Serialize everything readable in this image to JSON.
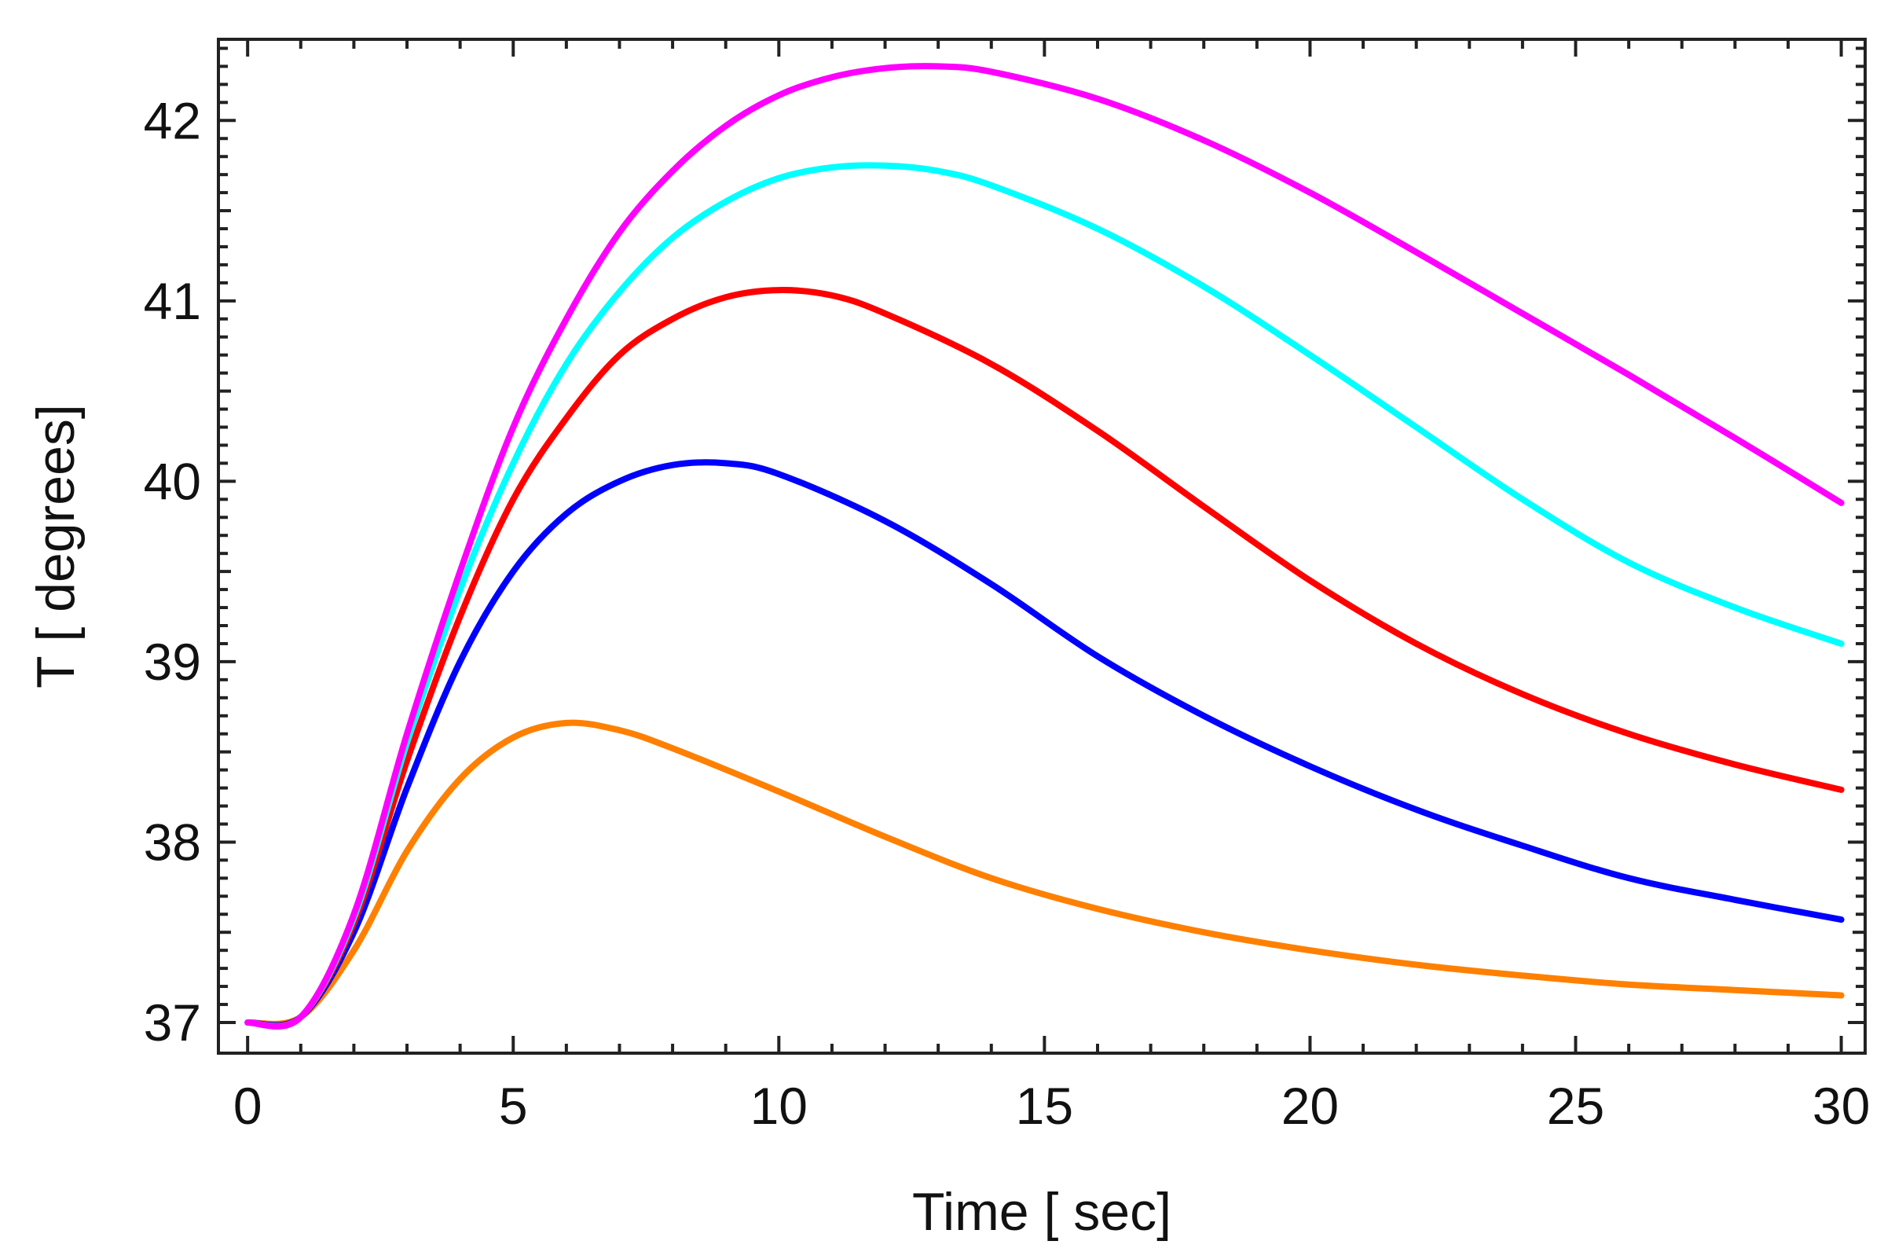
{
  "chart_data": {
    "type": "line",
    "title": "",
    "xlabel": "Time [ sec]",
    "ylabel": "T [ degrees]",
    "xlim": [
      -0.55,
      30.45
    ],
    "ylim": [
      36.83,
      42.45
    ],
    "xticks": [
      0,
      5,
      10,
      15,
      20,
      25,
      30
    ],
    "yticks": [
      37,
      38,
      39,
      40,
      41,
      42
    ],
    "xtick_labels": [
      "0",
      "5",
      "10",
      "15",
      "20",
      "25",
      "30"
    ],
    "ytick_labels": [
      "37",
      "38",
      "39",
      "40",
      "41",
      "42"
    ],
    "grid": false,
    "legend": "none",
    "series": [
      {
        "name": "orange",
        "color": "#ff8000",
        "x": [
          0,
          1,
          2,
          3,
          4,
          5,
          6,
          7,
          8,
          10,
          12,
          14,
          16,
          18,
          20,
          22,
          24,
          26,
          28,
          30
        ],
        "y": [
          37.0,
          37.03,
          37.4,
          37.95,
          38.35,
          38.58,
          38.66,
          38.62,
          38.52,
          38.28,
          38.03,
          37.8,
          37.63,
          37.5,
          37.4,
          37.32,
          37.26,
          37.21,
          37.18,
          37.15
        ]
      },
      {
        "name": "blue",
        "color": "#0000ff",
        "x": [
          0,
          1,
          2,
          3,
          4,
          5,
          6,
          7,
          8,
          9,
          10,
          12,
          14,
          16,
          18,
          20,
          22,
          24,
          26,
          28,
          30
        ],
        "y": [
          37.0,
          37.03,
          37.5,
          38.3,
          39.0,
          39.5,
          39.82,
          40.0,
          40.09,
          40.1,
          40.04,
          39.78,
          39.43,
          39.03,
          38.7,
          38.42,
          38.18,
          37.98,
          37.8,
          37.68,
          37.57
        ]
      },
      {
        "name": "red",
        "color": "#ff0000",
        "x": [
          0,
          1,
          2,
          3,
          4,
          5,
          6,
          7,
          8,
          9,
          10,
          11,
          12,
          14,
          16,
          18,
          20,
          22,
          24,
          26,
          28,
          30
        ],
        "y": [
          37.0,
          37.03,
          37.55,
          38.45,
          39.25,
          39.9,
          40.35,
          40.7,
          40.9,
          41.02,
          41.06,
          41.03,
          40.93,
          40.65,
          40.28,
          39.86,
          39.45,
          39.1,
          38.82,
          38.6,
          38.43,
          38.29
        ]
      },
      {
        "name": "cyan",
        "color": "#00ffff",
        "x": [
          0,
          1,
          2,
          3,
          4,
          5,
          6,
          7,
          8,
          9,
          10,
          11,
          12,
          13,
          14,
          16,
          18,
          20,
          22,
          24,
          26,
          28,
          30
        ],
        "y": [
          37.0,
          37.03,
          37.58,
          38.55,
          39.4,
          40.1,
          40.65,
          41.05,
          41.35,
          41.55,
          41.68,
          41.74,
          41.75,
          41.72,
          41.64,
          41.4,
          41.08,
          40.7,
          40.3,
          39.9,
          39.55,
          39.3,
          39.1
        ]
      },
      {
        "name": "magenta",
        "color": "#ff00ff",
        "x": [
          0,
          1,
          2,
          3,
          4,
          5,
          6,
          7,
          8,
          9,
          10,
          11,
          12,
          13,
          14,
          16,
          18,
          20,
          22,
          24,
          26,
          28,
          30
        ],
        "y": [
          37.0,
          37.03,
          37.6,
          38.6,
          39.5,
          40.3,
          40.9,
          41.38,
          41.72,
          41.97,
          42.14,
          42.24,
          42.29,
          42.3,
          42.27,
          42.12,
          41.89,
          41.6,
          41.27,
          40.93,
          40.59,
          40.24,
          39.88
        ]
      }
    ]
  }
}
